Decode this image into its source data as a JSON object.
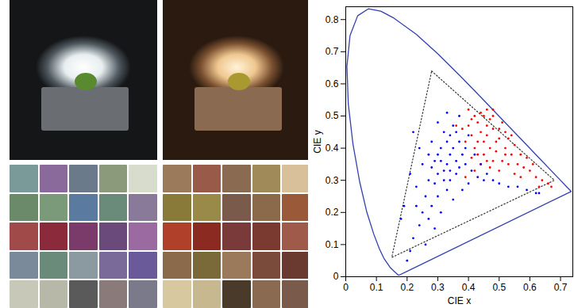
{
  "chart_data": {
    "type": "scatter",
    "xlabel": "CIE x",
    "ylabel": "CIE y",
    "xlim": [
      0,
      0.74
    ],
    "ylim": [
      0,
      0.84
    ],
    "xticks": [
      0,
      0.1,
      0.2,
      0.3,
      0.4,
      0.5,
      0.6,
      0.7
    ],
    "yticks": [
      0,
      0.1,
      0.2,
      0.3,
      0.4,
      0.5,
      0.6,
      0.7,
      0.8
    ],
    "grid": false,
    "series": [
      {
        "type": "line",
        "line_style": "solid",
        "color": "#3340b0",
        "x": [
          0.1741,
          0.1714,
          0.1644,
          0.1566,
          0.144,
          0.1241,
          0.1096,
          0.0913,
          0.0687,
          0.0454,
          0.0235,
          0.0082,
          0.0039,
          0.0139,
          0.0389,
          0.0743,
          0.1142,
          0.1547,
          0.2296,
          0.3016,
          0.3731,
          0.4441,
          0.5125,
          0.5752,
          0.627,
          0.6915,
          0.719,
          0.7347,
          0.1741
        ],
        "y": [
          0.005,
          0.0051,
          0.0109,
          0.0177,
          0.0297,
          0.0578,
          0.0868,
          0.1327,
          0.2007,
          0.295,
          0.4127,
          0.5384,
          0.6548,
          0.7502,
          0.812,
          0.8338,
          0.8262,
          0.8059,
          0.7543,
          0.6923,
          0.6245,
          0.5547,
          0.4866,
          0.4242,
          0.3725,
          0.3083,
          0.2809,
          0.2653,
          0.005
        ]
      },
      {
        "type": "line",
        "line_style": "dotted",
        "color": "#333333",
        "x": [
          0.28,
          0.68,
          0.15,
          0.28
        ],
        "y": [
          0.64,
          0.3,
          0.06,
          0.64
        ]
      },
      {
        "type": "scatter",
        "marker": "dot",
        "color": "#ff0000",
        "x": [
          0.47,
          0.45,
          0.49,
          0.44,
          0.46,
          0.43,
          0.42,
          0.45,
          0.48,
          0.5,
          0.52,
          0.54,
          0.51,
          0.48,
          0.45,
          0.42,
          0.41,
          0.4,
          0.44,
          0.47,
          0.5,
          0.53,
          0.55,
          0.57,
          0.56,
          0.58,
          0.6,
          0.62,
          0.64,
          0.66,
          0.67,
          0.59,
          0.53,
          0.5,
          0.47,
          0.44,
          0.41,
          0.39,
          0.38,
          0.43,
          0.46,
          0.49,
          0.52,
          0.51,
          0.48,
          0.46,
          0.41,
          0.43,
          0.46,
          0.55,
          0.61,
          0.57,
          0.63,
          0.54,
          0.39,
          0.42,
          0.36,
          0.4,
          0.48,
          0.52
        ],
        "y": [
          0.4,
          0.42,
          0.39,
          0.45,
          0.47,
          0.48,
          0.5,
          0.5,
          0.46,
          0.43,
          0.4,
          0.38,
          0.36,
          0.36,
          0.38,
          0.4,
          0.44,
          0.47,
          0.51,
          0.49,
          0.46,
          0.43,
          0.41,
          0.38,
          0.35,
          0.34,
          0.33,
          0.31,
          0.3,
          0.29,
          0.28,
          0.37,
          0.35,
          0.33,
          0.34,
          0.35,
          0.37,
          0.42,
          0.46,
          0.42,
          0.44,
          0.42,
          0.45,
          0.48,
          0.5,
          0.52,
          0.49,
          0.38,
          0.36,
          0.32,
          0.35,
          0.31,
          0.28,
          0.44,
          0.31,
          0.33,
          0.47,
          0.52,
          0.52,
          0.38
        ]
      },
      {
        "type": "scatter",
        "marker": "dot",
        "color": "#0000ff",
        "x": [
          0.33,
          0.34,
          0.32,
          0.35,
          0.31,
          0.36,
          0.3,
          0.33,
          0.37,
          0.34,
          0.29,
          0.28,
          0.32,
          0.35,
          0.38,
          0.39,
          0.36,
          0.31,
          0.27,
          0.26,
          0.3,
          0.33,
          0.28,
          0.25,
          0.24,
          0.22,
          0.21,
          0.2,
          0.26,
          0.23,
          0.24,
          0.22,
          0.28,
          0.3,
          0.33,
          0.37,
          0.4,
          0.41,
          0.43,
          0.45,
          0.48,
          0.5,
          0.53,
          0.56,
          0.59,
          0.62,
          0.63,
          0.42,
          0.4,
          0.38,
          0.35,
          0.31,
          0.29,
          0.27,
          0.19,
          0.21,
          0.25,
          0.34,
          0.36,
          0.39,
          0.3,
          0.32,
          0.37,
          0.34,
          0.29,
          0.46,
          0.44,
          0.27,
          0.23,
          0.18
        ],
        "y": [
          0.35,
          0.38,
          0.33,
          0.4,
          0.36,
          0.36,
          0.32,
          0.42,
          0.42,
          0.3,
          0.29,
          0.34,
          0.45,
          0.47,
          0.38,
          0.35,
          0.32,
          0.4,
          0.3,
          0.25,
          0.25,
          0.27,
          0.22,
          0.2,
          0.16,
          0.12,
          0.08,
          0.05,
          0.1,
          0.28,
          0.4,
          0.45,
          0.42,
          0.48,
          0.51,
          0.5,
          0.44,
          0.33,
          0.31,
          0.3,
          0.3,
          0.29,
          0.28,
          0.28,
          0.27,
          0.26,
          0.26,
          0.38,
          0.29,
          0.27,
          0.24,
          0.2,
          0.15,
          0.18,
          0.22,
          0.32,
          0.35,
          0.44,
          0.45,
          0.4,
          0.38,
          0.3,
          0.34,
          0.33,
          0.36,
          0.32,
          0.35,
          0.38,
          0.22,
          0.18
        ]
      }
    ]
  }
}
